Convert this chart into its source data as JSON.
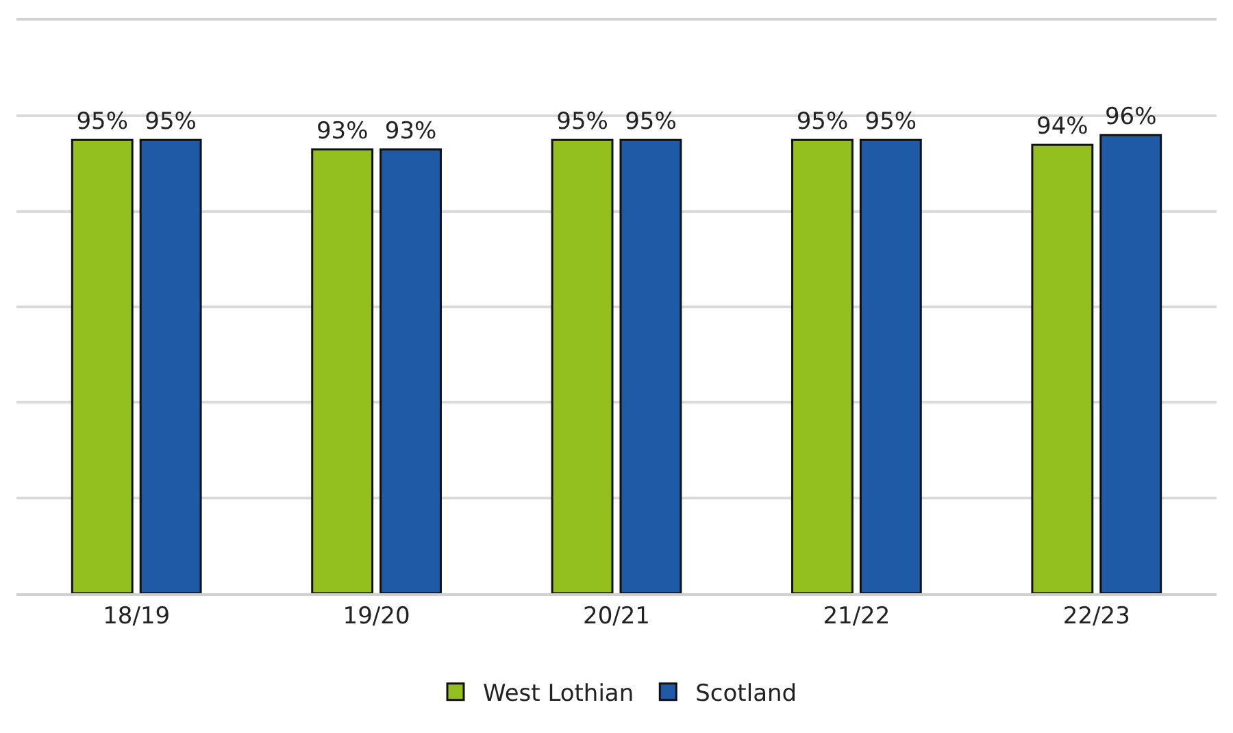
{
  "chart_data": {
    "type": "bar",
    "categories": [
      "18/19",
      "19/20",
      "20/21",
      "21/22",
      "22/23"
    ],
    "series": [
      {
        "name": "West Lothian",
        "color": "#93c01f",
        "values": [
          95,
          93,
          95,
          95,
          94
        ],
        "value_labels": [
          "95%",
          "93%",
          "95%",
          "95%",
          "94%"
        ]
      },
      {
        "name": "Scotland",
        "color": "#1f5aa6",
        "values": [
          95,
          93,
          95,
          95,
          96
        ],
        "value_labels": [
          "95%",
          "93%",
          "95%",
          "95%",
          "96%"
        ]
      }
    ],
    "ylim": [
      0,
      120
    ],
    "yticks": [
      {
        "value": 0,
        "label": null
      },
      {
        "value": 20,
        "label": null
      },
      {
        "value": 40,
        "label": null
      },
      {
        "value": 60,
        "label": null
      },
      {
        "value": 80,
        "label": null
      },
      {
        "value": 100,
        "label": null
      }
    ],
    "grid": "y",
    "legend": "bottom",
    "tick_labels": "x"
  }
}
